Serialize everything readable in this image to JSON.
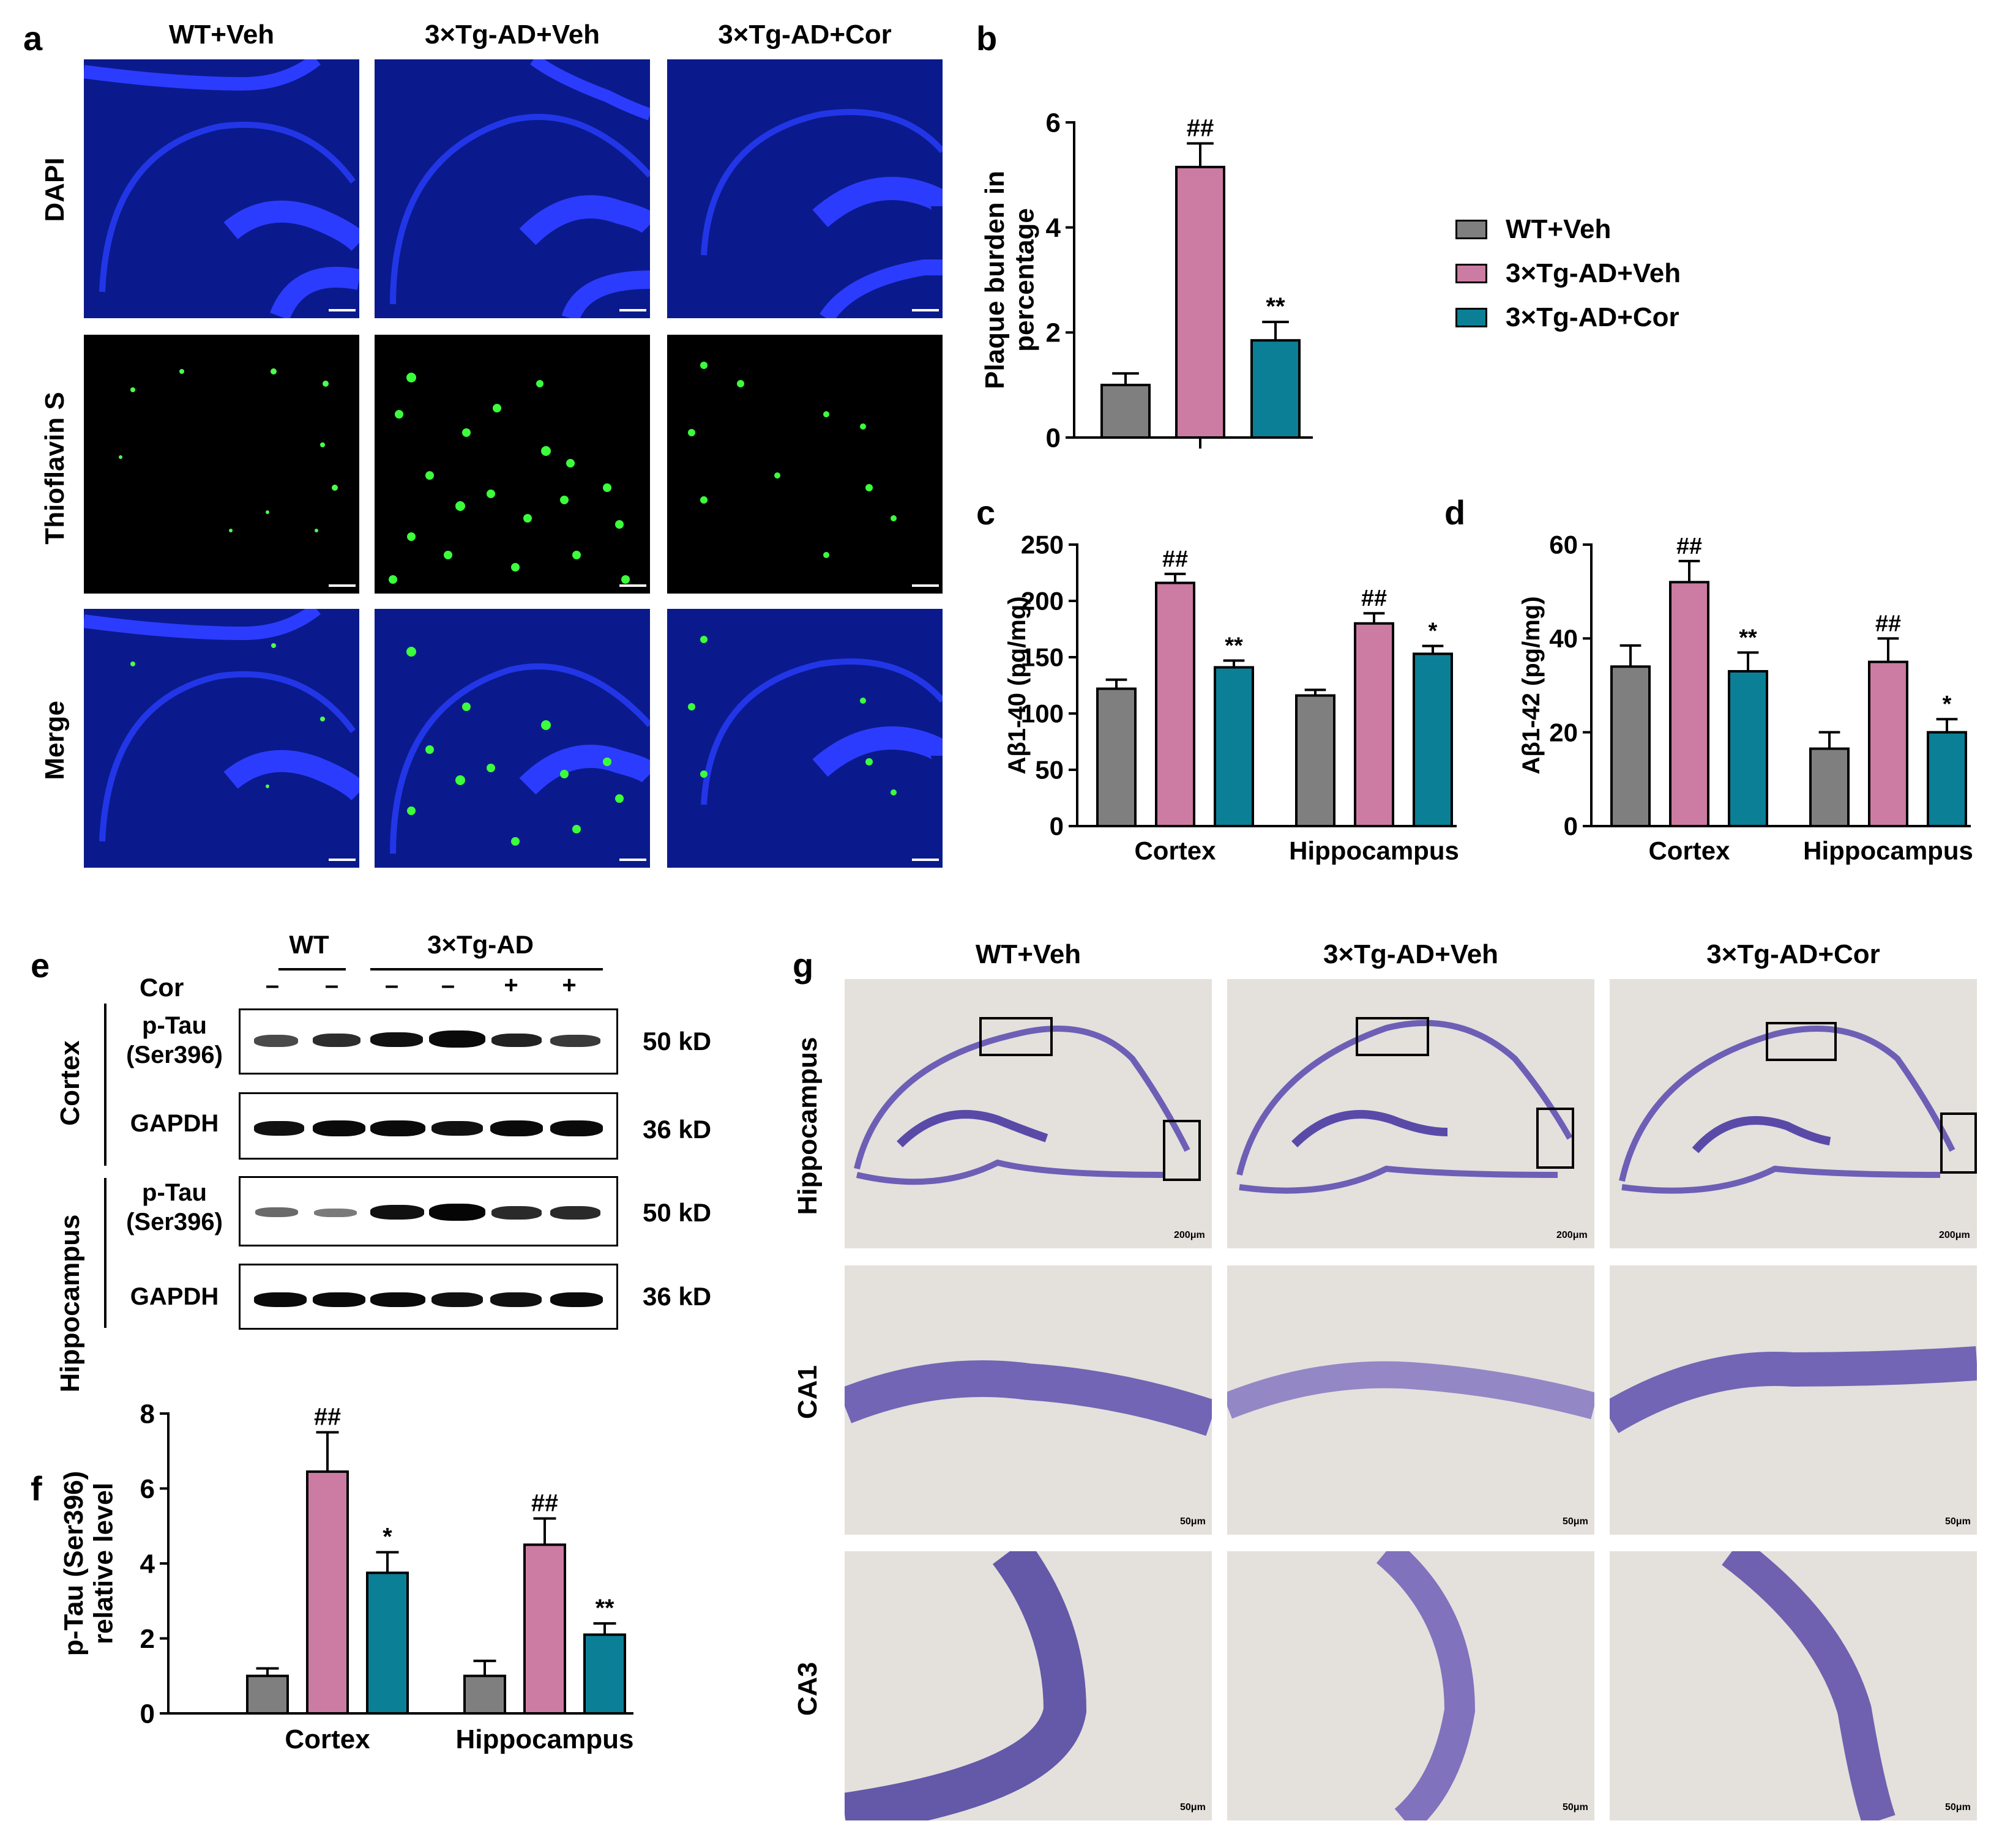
{
  "panels": {
    "a": "a",
    "b": "b",
    "c": "c",
    "d": "d",
    "e": "e",
    "f": "f",
    "g": "g"
  },
  "panel_a": {
    "columns": [
      "WT+Veh",
      "3×Tg-AD+Veh",
      "3×Tg-AD+Cor"
    ],
    "rows": [
      "DAPI",
      "Thioflavin S",
      "Merge"
    ],
    "scale_bar": "200μm"
  },
  "legend": {
    "items": [
      {
        "label": "WT+Veh",
        "color": "#7f7f7f"
      },
      {
        "label": "3×Tg-AD+Veh",
        "color": "#cc7ba2"
      },
      {
        "label": "3×Tg-AD+Cor",
        "color": "#0b7f96"
      }
    ]
  },
  "colors": {
    "wt": "#7f7f7f",
    "tgveh": "#cc7ba2",
    "tgcor": "#0b7f96"
  },
  "chart_data": [
    {
      "id": "b",
      "type": "bar",
      "ylabel_line1": "Plaque burden in",
      "ylabel_line2": "percentage",
      "ylim": [
        0,
        6
      ],
      "yticks": [
        "0",
        "2",
        "4",
        "6"
      ],
      "categories": [
        "WT+Veh",
        "3×Tg-AD+Veh",
        "3×Tg-AD+Cor"
      ],
      "values": [
        1.0,
        5.15,
        1.85
      ],
      "errors": [
        0.22,
        0.45,
        0.35
      ],
      "annotations": [
        "",
        "##",
        "**"
      ]
    },
    {
      "id": "c",
      "type": "bar",
      "ylabel": "Aβ1-40 (pg/mg)",
      "ylim": [
        0,
        250
      ],
      "yticks": [
        "0",
        "50",
        "100",
        "150",
        "200",
        "250"
      ],
      "categories": [
        "Cortex",
        "Hippocampus"
      ],
      "series": [
        {
          "name": "WT+Veh",
          "values": [
            122,
            116
          ],
          "errors": [
            8,
            5
          ],
          "annotations": [
            "",
            ""
          ]
        },
        {
          "name": "3×Tg-AD+Veh",
          "values": [
            216,
            180
          ],
          "errors": [
            8,
            9
          ],
          "annotations": [
            "##",
            "##"
          ]
        },
        {
          "name": "3×Tg-AD+Cor",
          "values": [
            141,
            153
          ],
          "errors": [
            6,
            7
          ],
          "annotations": [
            "**",
            "*"
          ]
        }
      ]
    },
    {
      "id": "d",
      "type": "bar",
      "ylabel": "Aβ1-42 (pg/mg)",
      "ylim": [
        0,
        60
      ],
      "yticks": [
        "0",
        "20",
        "40",
        "60"
      ],
      "categories": [
        "Cortex",
        "Hippocampus"
      ],
      "series": [
        {
          "name": "WT+Veh",
          "values": [
            34,
            16.5
          ],
          "errors": [
            4.5,
            3.5
          ],
          "annotations": [
            "",
            ""
          ]
        },
        {
          "name": "3×Tg-AD+Veh",
          "values": [
            52,
            35
          ],
          "errors": [
            4.5,
            5
          ],
          "annotations": [
            "##",
            "##"
          ]
        },
        {
          "name": "3×Tg-AD+Cor",
          "values": [
            33,
            20
          ],
          "errors": [
            4,
            2.8
          ],
          "annotations": [
            "**",
            "*"
          ]
        }
      ]
    },
    {
      "id": "f",
      "type": "bar",
      "ylabel_line1": "p-Tau (Ser396)",
      "ylabel_line2": "relative level",
      "ylim": [
        0,
        8
      ],
      "yticks": [
        "0",
        "2",
        "4",
        "6",
        "8"
      ],
      "categories": [
        "Cortex",
        "Hippocampus"
      ],
      "series": [
        {
          "name": "WT+Veh",
          "values": [
            1.0,
            1.0
          ],
          "errors": [
            0.2,
            0.4
          ],
          "annotations": [
            "",
            ""
          ]
        },
        {
          "name": "3×Tg-AD+Veh",
          "values": [
            6.45,
            4.5
          ],
          "errors": [
            1.05,
            0.7
          ],
          "annotations": [
            "##",
            "##"
          ]
        },
        {
          "name": "3×Tg-AD+Cor",
          "values": [
            3.75,
            2.1
          ],
          "errors": [
            0.55,
            0.3
          ],
          "annotations": [
            "*",
            "**"
          ]
        }
      ]
    }
  ],
  "panel_e": {
    "group_wt": "WT",
    "group_tg": "3×Tg-AD",
    "cor_label": "Cor",
    "cor_signs": [
      "–",
      "–",
      "–",
      "–",
      "+",
      "+"
    ],
    "region_cortex": "Cortex",
    "region_hippo": "Hippocampus",
    "blots": [
      {
        "label_line1": "p-Tau",
        "label_line2": "(Ser396)",
        "kd": "50 kD"
      },
      {
        "label_line1": "GAPDH",
        "label_line2": "",
        "kd": "36 kD"
      },
      {
        "label_line1": "p-Tau",
        "label_line2": "(Ser396)",
        "kd": "50 kD"
      },
      {
        "label_line1": "GAPDH",
        "label_line2": "",
        "kd": "36 kD"
      }
    ]
  },
  "panel_g": {
    "columns": [
      "WT+Veh",
      "3×Tg-AD+Veh",
      "3×Tg-AD+Cor"
    ],
    "rows": [
      "Hippocampus",
      "CA1",
      "CA3"
    ],
    "scale_200": "200μm",
    "scale_50": "50μm"
  }
}
